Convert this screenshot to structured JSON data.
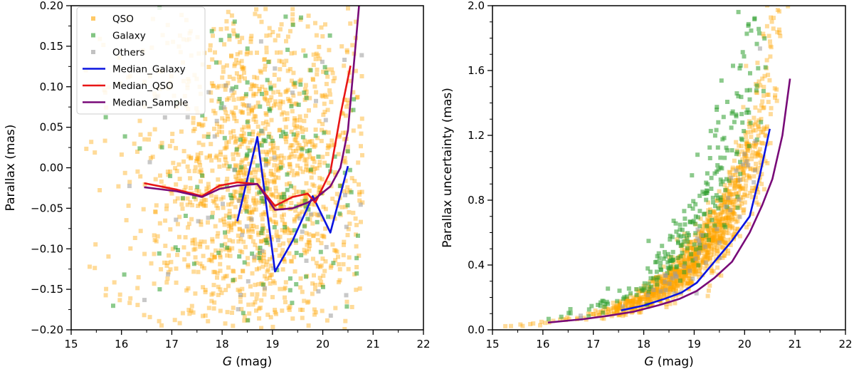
{
  "colors": {
    "qso": "#ffa500",
    "galaxy": "#2e9e2e",
    "others": "#9a9a9a",
    "median_galaxy": "#0a14e0",
    "median_qso": "#e81616",
    "median_sample": "#780a78"
  },
  "chart_data": [
    {
      "type": "scatter",
      "title": "",
      "xlabel_italic": "G",
      "xlabel_rest": " (mag)",
      "ylabel": "Parallax (mas)",
      "xlim": [
        15,
        22
      ],
      "ylim": [
        -0.2,
        0.2
      ],
      "xticks": [
        15,
        16,
        17,
        18,
        19,
        20,
        21,
        22
      ],
      "xtick_labels": [
        "15",
        "16",
        "17",
        "18",
        "19",
        "20",
        "21",
        "22"
      ],
      "yticks": [
        -0.2,
        -0.15,
        -0.1,
        -0.05,
        0.0,
        0.05,
        0.1,
        0.15,
        0.2
      ],
      "ytick_labels": [
        "−0.20",
        "−0.15",
        "−0.10",
        "−0.05",
        "0.00",
        "0.05",
        "0.10",
        "0.15",
        "0.20"
      ],
      "legend_position": "top-left",
      "legend": [
        {
          "label": "QSO",
          "kind": "marker",
          "color_key": "qso"
        },
        {
          "label": "Galaxy",
          "kind": "marker",
          "color_key": "galaxy"
        },
        {
          "label": "Others",
          "kind": "marker",
          "color_key": "others"
        },
        {
          "label": "Median_Galaxy",
          "kind": "line",
          "color_key": "median_galaxy"
        },
        {
          "label": "Median_QSO",
          "kind": "line",
          "color_key": "median_qso"
        },
        {
          "label": "Median_Sample",
          "kind": "line",
          "color_key": "median_sample"
        }
      ],
      "scatter_description": "dense cloud of points across G 15.2-20.8, parallax -0.2 to 0.2",
      "scatter_groups": [
        {
          "name": "QSO",
          "color_key": "qso",
          "count": 1400,
          "xrange": [
            15.2,
            20.8
          ],
          "yrange": [
            -0.2,
            0.2
          ]
        },
        {
          "name": "Galaxy",
          "color_key": "galaxy",
          "count": 170,
          "xrange": [
            15.6,
            20.7
          ],
          "yrange": [
            -0.2,
            0.2
          ]
        },
        {
          "name": "Others",
          "color_key": "others",
          "count": 55,
          "xrange": [
            16.0,
            20.8
          ],
          "yrange": [
            -0.2,
            0.2
          ]
        }
      ],
      "series": [
        {
          "name": "Median_Galaxy",
          "color_key": "median_galaxy",
          "x": [
            18.3,
            18.7,
            19.05,
            19.4,
            19.8,
            20.15,
            20.5
          ],
          "y": [
            -0.066,
            0.038,
            -0.128,
            -0.09,
            -0.035,
            -0.08,
            0.002
          ]
        },
        {
          "name": "Median_QSO",
          "color_key": "median_qso",
          "x": [
            16.45,
            17.1,
            17.6,
            17.95,
            18.3,
            18.7,
            19.05,
            19.4,
            19.7,
            19.85,
            20.15,
            20.35,
            20.55
          ],
          "y": [
            -0.019,
            -0.027,
            -0.035,
            -0.022,
            -0.018,
            -0.02,
            -0.047,
            -0.036,
            -0.032,
            -0.043,
            -0.005,
            0.065,
            0.126
          ]
        },
        {
          "name": "Median_Sample",
          "color_key": "median_sample",
          "x": [
            16.45,
            17.1,
            17.6,
            17.95,
            18.3,
            18.7,
            19.05,
            19.4,
            19.7,
            19.85,
            20.15,
            20.35,
            20.5,
            20.65,
            20.72
          ],
          "y": [
            -0.024,
            -0.029,
            -0.036,
            -0.026,
            -0.022,
            -0.02,
            -0.052,
            -0.05,
            -0.043,
            -0.038,
            -0.023,
            0.0,
            0.046,
            0.15,
            0.2
          ]
        }
      ]
    },
    {
      "type": "scatter",
      "title": "",
      "xlabel_italic": "G",
      "xlabel_rest": " (mag)",
      "ylabel": "Parallax uncertainty (mas)",
      "xlim": [
        15,
        22
      ],
      "ylim": [
        0.0,
        2.0
      ],
      "xticks": [
        15,
        16,
        17,
        18,
        19,
        20,
        21,
        22
      ],
      "xtick_labels": [
        "15",
        "16",
        "17",
        "18",
        "19",
        "20",
        "21",
        "22"
      ],
      "yticks": [
        0.0,
        0.4,
        0.8,
        1.2,
        1.6,
        2.0
      ],
      "ytick_labels": [
        "0.0",
        "0.4",
        "0.8",
        "1.2",
        "1.6",
        "2.0"
      ],
      "scatter_description": "points follow an exponential rise of uncertainty with magnitude",
      "scatter_groups": [
        {
          "name": "QSO",
          "color_key": "qso",
          "count": 1300,
          "xrange": [
            15.2,
            20.95
          ],
          "trend": "exponential"
        },
        {
          "name": "Galaxy",
          "color_key": "galaxy",
          "count": 260,
          "xrange": [
            15.4,
            20.8
          ],
          "trend": "exponential-upper"
        },
        {
          "name": "Others",
          "color_key": "others",
          "count": 50,
          "xrange": [
            16.5,
            21.0
          ],
          "trend": "exponential"
        }
      ],
      "series": [
        {
          "name": "Median_Galaxy",
          "color_key": "median_galaxy",
          "x": [
            17.55,
            18.0,
            18.4,
            18.75,
            19.05,
            19.4,
            19.75,
            20.1,
            20.3,
            20.5
          ],
          "y": [
            0.12,
            0.15,
            0.19,
            0.23,
            0.29,
            0.42,
            0.55,
            0.7,
            0.95,
            1.24
          ]
        },
        {
          "name": "Median_QSO",
          "color_key": "median_qso",
          "x": [
            16.1,
            16.8,
            17.3,
            17.8,
            18.3,
            18.7,
            19.05,
            19.4,
            19.75,
            20.1,
            20.35,
            20.55,
            20.75,
            20.9
          ],
          "y": [
            0.045,
            0.065,
            0.085,
            0.11,
            0.15,
            0.19,
            0.24,
            0.32,
            0.42,
            0.6,
            0.77,
            0.93,
            1.2,
            1.55
          ]
        },
        {
          "name": "Median_Sample",
          "color_key": "median_sample",
          "x": [
            16.1,
            16.8,
            17.3,
            17.8,
            18.3,
            18.7,
            19.05,
            19.4,
            19.75,
            20.1,
            20.35,
            20.55,
            20.75,
            20.9
          ],
          "y": [
            0.045,
            0.066,
            0.087,
            0.112,
            0.152,
            0.19,
            0.24,
            0.32,
            0.42,
            0.6,
            0.77,
            0.93,
            1.2,
            1.55
          ]
        }
      ]
    }
  ]
}
